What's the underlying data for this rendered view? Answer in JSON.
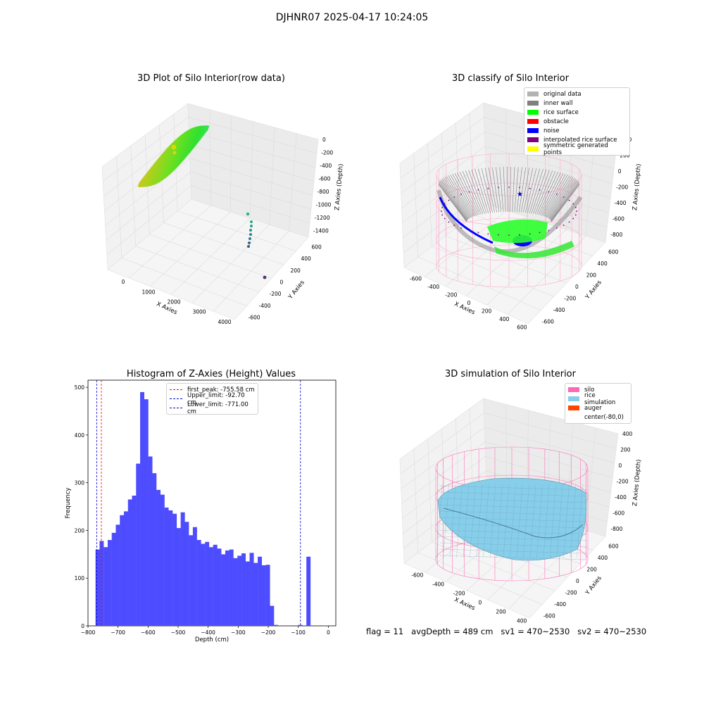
{
  "suptitle": "DJHNR07 2025-04-17 10:24:05",
  "panels": {
    "raw": {
      "title": "3D Plot of Silo Interior(row data)",
      "xlabel": "X Axies",
      "ylabel": "Y Axies",
      "zlabel": "Z Axies (Depth)",
      "xticks": [
        "0",
        "1000",
        "2000",
        "3000",
        "4000"
      ],
      "yticks": [
        "600",
        "400",
        "200",
        "0",
        "-200",
        "-400",
        "-600"
      ],
      "zticks": [
        "0",
        "-200",
        "-400",
        "-600",
        "-800",
        "-1000",
        "-1200",
        "-1400"
      ]
    },
    "classify": {
      "title": "3D classify of Silo Interior",
      "xlabel": "X Axies",
      "ylabel": "Y Axies",
      "zlabel": "Z Axies (Depth)",
      "xticks": [
        "-600",
        "-400",
        "-200",
        "0",
        "200",
        "400",
        "600"
      ],
      "yticks": [
        "600",
        "400",
        "200",
        "0",
        "-200",
        "-400",
        "-600"
      ],
      "zticks": [
        "400",
        "200",
        "0",
        "-200",
        "-400",
        "-600",
        "-800"
      ],
      "legend": [
        {
          "label": "original data",
          "color": "#b3b3b3"
        },
        {
          "label": "inner wall",
          "color": "#808080"
        },
        {
          "label": "rice surface",
          "color": "#00ff00"
        },
        {
          "label": "obstacle",
          "color": "#ff0000"
        },
        {
          "label": "noise",
          "color": "#0000ff"
        },
        {
          "label": "interpolated rice surface",
          "color": "#800080"
        },
        {
          "label": "symmetric generated points",
          "color": "#ffff00"
        }
      ]
    },
    "simulation": {
      "title": "3D simulation of Silo Interior",
      "xlabel": "X Axies",
      "ylabel": "Y Axies",
      "zlabel": "Z Axies (Depth)",
      "xticks": [
        "-600",
        "-400",
        "-200",
        "0",
        "200",
        "400"
      ],
      "yticks": [
        "600",
        "400",
        "200",
        "0",
        "-200",
        "-400",
        "-600"
      ],
      "zticks": [
        "400",
        "200",
        "0",
        "-200",
        "-400",
        "-600",
        "-800"
      ],
      "legend": [
        {
          "label": "silo",
          "color": "#ff69b4"
        },
        {
          "label": "rice simulation",
          "color": "#87ceeb"
        },
        {
          "label": "auger",
          "color": "#ff4500"
        },
        {
          "label": "center(-80,0)",
          "color": "#ffffff"
        }
      ]
    }
  },
  "footer": {
    "flag": "flag = 11",
    "avg": "avgDepth = 489 cm",
    "sv1": "sv1 = 470~2530",
    "sv2": "sv2 = 470~2530"
  },
  "chart_data": [
    {
      "type": "scatter3d",
      "title": "3D Plot of Silo Interior(row data)",
      "xlabel": "X Axies",
      "ylabel": "Y Axies",
      "zlabel": "Z Axies (Depth)",
      "xlim": [
        -800,
        4000
      ],
      "ylim": [
        -600,
        700
      ],
      "zlim": [
        -1500,
        50
      ]
    },
    {
      "type": "scatter3d",
      "title": "3D classify of Silo Interior",
      "xlabel": "X Axies",
      "ylabel": "Y Axies",
      "zlabel": "Z Axies (Depth)",
      "xlim": [
        -700,
        700
      ],
      "ylim": [
        -700,
        700
      ],
      "zlim": [
        -900,
        450
      ],
      "series": [
        "original data",
        "inner wall",
        "rice surface",
        "obstacle",
        "noise",
        "interpolated rice surface",
        "symmetric generated points"
      ]
    },
    {
      "type": "histogram",
      "title": "Histogram of Z-Axies (Height) Values",
      "xlabel": "Depth (cm)",
      "ylabel": "Frequency",
      "xlim": [
        -800,
        25
      ],
      "ylim": [
        0,
        515
      ],
      "xticks": [
        -800,
        -700,
        -600,
        -500,
        -400,
        -300,
        -200,
        -100,
        0
      ],
      "yticks": [
        0,
        100,
        200,
        300,
        400,
        500
      ],
      "bin_width": 13.5,
      "bins_start": -775,
      "counts": [
        160,
        178,
        165,
        180,
        195,
        212,
        232,
        240,
        265,
        273,
        340,
        490,
        475,
        355,
        320,
        285,
        275,
        248,
        242,
        235,
        205,
        238,
        218,
        190,
        207,
        180,
        172,
        176,
        165,
        170,
        162,
        150,
        158,
        160,
        142,
        147,
        152,
        135,
        153,
        132,
        145,
        127,
        128,
        42,
        2,
        0,
        0,
        0,
        0,
        0,
        2,
        0,
        145,
        0
      ],
      "lines": [
        {
          "label": "first_peak: -755.58 cm",
          "x": -755.58,
          "color": "#ff0000"
        },
        {
          "label": "Upper_limit: -92.70 cm",
          "x": -92.7,
          "color": "#0000cd"
        },
        {
          "label": "Lower_limit: -771.00 cm",
          "x": -771.0,
          "color": "#0000cd"
        }
      ]
    },
    {
      "type": "surface3d",
      "title": "3D simulation of Silo Interior",
      "xlabel": "X Axies",
      "ylabel": "Y Axies",
      "zlabel": "Z Axies (Depth)",
      "xlim": [
        -700,
        500
      ],
      "ylim": [
        -700,
        700
      ],
      "zlim": [
        -900,
        450
      ],
      "series": [
        "silo",
        "rice simulation",
        "auger",
        "center(-80,0)"
      ]
    }
  ]
}
